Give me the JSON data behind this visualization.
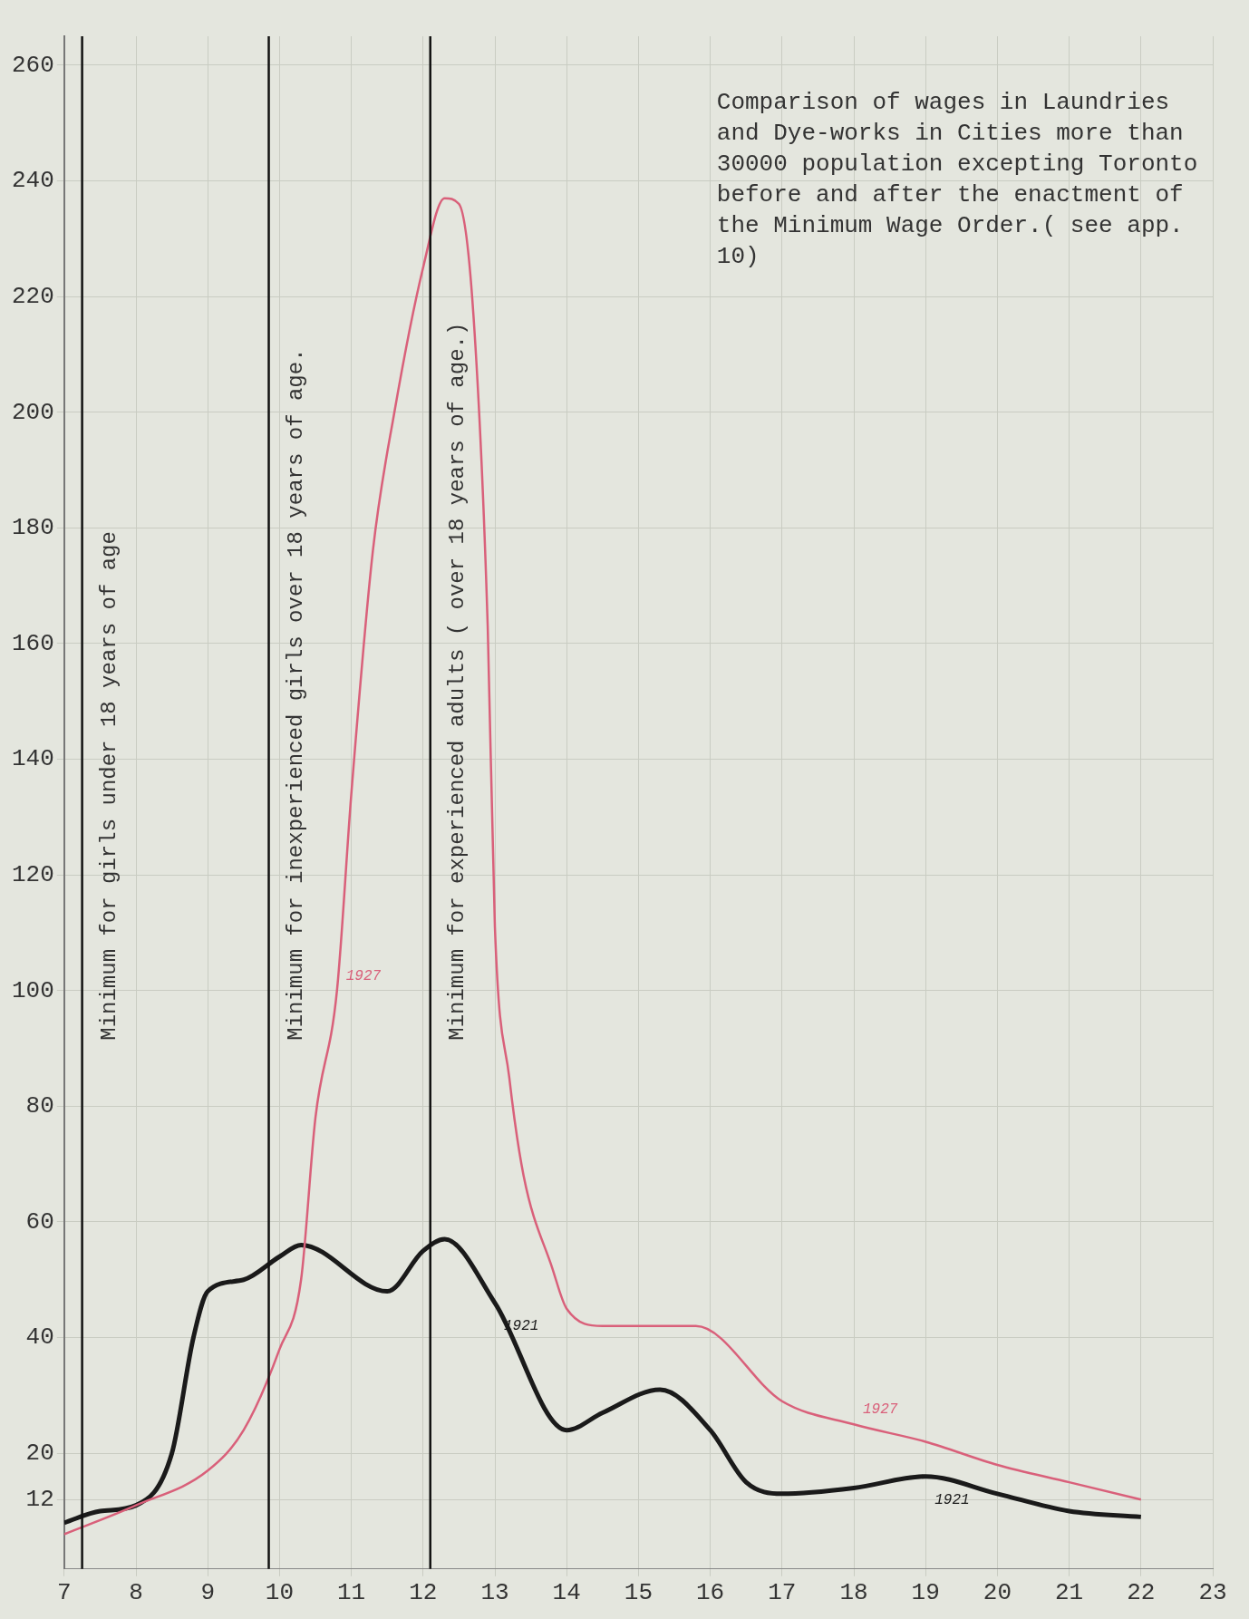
{
  "chart_data": {
    "type": "line",
    "title": "Comparison of wages in Laundries and Dye-works in Cities more than 30000 population excepting Toronto before and after the enactment of the Minimum Wage Order.( see app. 10)",
    "xlim": [
      7,
      23
    ],
    "xticks": [
      7,
      8,
      9,
      10,
      11,
      12,
      13,
      14,
      15,
      16,
      17,
      18,
      19,
      20,
      21,
      22,
      23
    ],
    "ylim": [
      0,
      265
    ],
    "yticks": [
      12,
      20,
      40,
      60,
      80,
      100,
      120,
      140,
      160,
      180,
      200,
      220,
      240,
      260
    ],
    "grid": true,
    "legend": false,
    "marker": "none",
    "line_style": "solid",
    "ref_lines": [
      {
        "axis": "x",
        "value": 7.25,
        "label": "Minimum for girls under 18 years of age",
        "color": "#111111"
      },
      {
        "axis": "x",
        "value": 9.85,
        "label": "Minimum for inexperienced girls over 18 years of age.",
        "color": "#111111"
      },
      {
        "axis": "x",
        "value": 12.1,
        "label": "Minimum for experienced adults ( over 18 years of age.)",
        "color": "#111111"
      }
    ],
    "series": [
      {
        "name": "1927",
        "color": "#d9607a",
        "x": [
          7,
          8,
          9,
          9.5,
          10,
          10.3,
          10.5,
          10.8,
          11,
          11.3,
          11.6,
          12,
          12.3,
          12.5,
          12.7,
          12.9,
          13,
          13.2,
          13.4,
          13.8,
          14,
          14.5,
          15.8,
          17,
          18,
          19,
          20,
          21,
          22
        ],
        "values": [
          6,
          11,
          17,
          24,
          38,
          50,
          78,
          100,
          134,
          176,
          200,
          225,
          237,
          236,
          217,
          163,
          111,
          85,
          68,
          52,
          45,
          42,
          42,
          29,
          25,
          22,
          18,
          15,
          12
        ]
      },
      {
        "name": "1921",
        "color": "#1a1a1a",
        "x": [
          7,
          7.5,
          8,
          8.5,
          8.8,
          9,
          9.5,
          10,
          10.3,
          11.5,
          12,
          12.3,
          13,
          14,
          14.5,
          15.3,
          16,
          16.5,
          17,
          18,
          19,
          20,
          21,
          22
        ],
        "values": [
          8,
          10,
          11,
          20,
          40,
          48,
          50,
          54,
          56,
          48,
          55,
          57,
          46,
          24,
          27,
          31,
          24,
          15,
          13,
          14,
          16,
          13,
          10,
          9
        ]
      }
    ]
  }
}
